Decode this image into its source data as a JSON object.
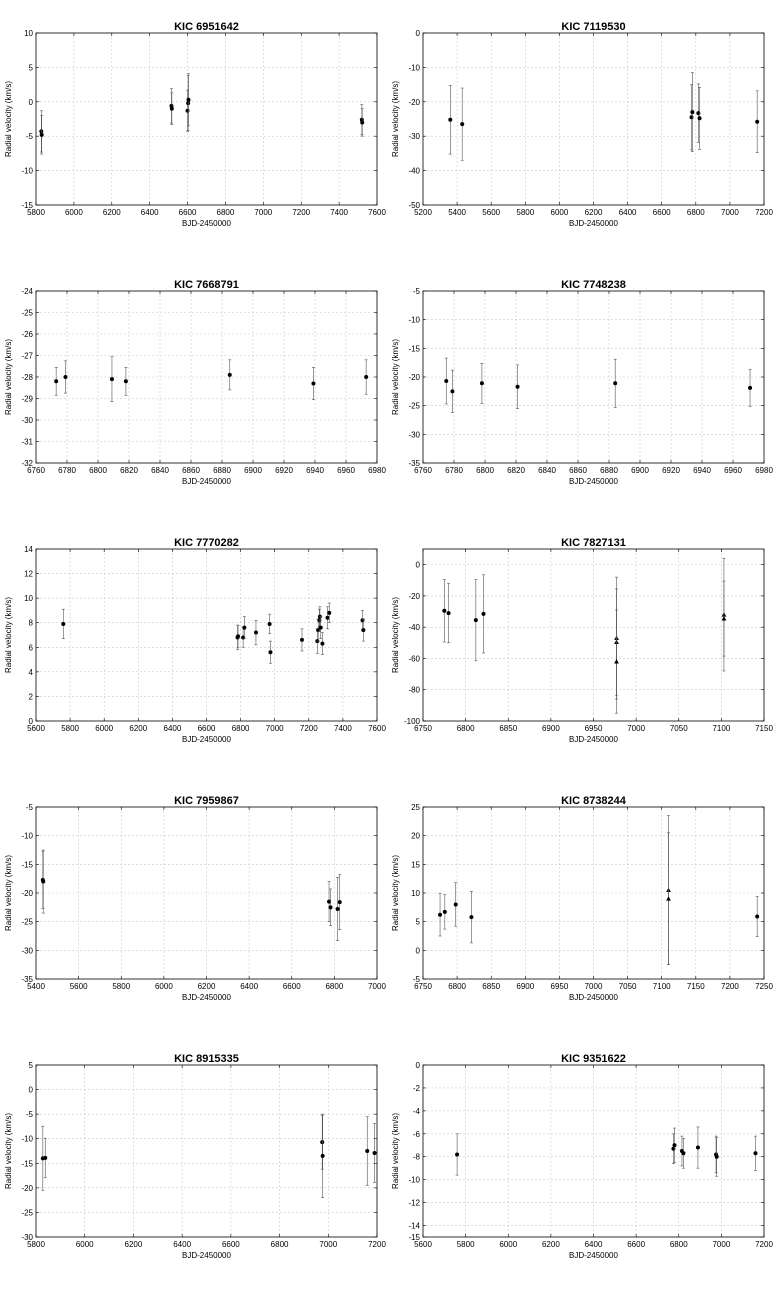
{
  "chart_data": [
    {
      "type": "scatter",
      "title": "KIC 6951642",
      "xlabel": "BJD-2450000",
      "ylabel": "Radial velocity (km/s)",
      "xlim": [
        5800,
        7600
      ],
      "ylim": [
        -15,
        10
      ],
      "xticks": [
        5800,
        6000,
        6200,
        6400,
        6600,
        6800,
        7000,
        7200,
        7400,
        7600
      ],
      "yticks": [
        -15,
        -10,
        -5,
        0,
        5,
        10
      ],
      "grid": true,
      "points": [
        {
          "x": 5828,
          "y": -4.3,
          "err": 3.0,
          "marker": "circle"
        },
        {
          "x": 5830,
          "y": -4.8,
          "err": 2.8,
          "marker": "circle"
        },
        {
          "x": 6515,
          "y": -0.6,
          "err": 2.5,
          "marker": "circle"
        },
        {
          "x": 6517,
          "y": -1.0,
          "err": 2.3,
          "marker": "circle"
        },
        {
          "x": 6600,
          "y": -1.3,
          "err": 3.0,
          "marker": "circle"
        },
        {
          "x": 6603,
          "y": -0.2,
          "err": 4.0,
          "marker": "circle"
        },
        {
          "x": 6605,
          "y": 0.3,
          "err": 3.8,
          "marker": "circle"
        },
        {
          "x": 7520,
          "y": -2.6,
          "err": 2.2,
          "marker": "circle"
        },
        {
          "x": 7522,
          "y": -3.0,
          "err": 2.0,
          "marker": "circle"
        }
      ]
    },
    {
      "type": "scatter",
      "title": "KIC 7119530",
      "xlabel": "BJD-2450000",
      "ylabel": "Radial velocity (km/s)",
      "xlim": [
        5200,
        7200
      ],
      "ylim": [
        -50,
        0
      ],
      "xticks": [
        5200,
        5400,
        5600,
        5800,
        6000,
        6200,
        6400,
        6600,
        6800,
        7000,
        7200
      ],
      "yticks": [
        -50,
        -40,
        -30,
        -20,
        -10,
        0
      ],
      "grid": true,
      "points": [
        {
          "x": 5360,
          "y": -25.2,
          "err": 10.0,
          "marker": "circle"
        },
        {
          "x": 5430,
          "y": -26.5,
          "err": 10.5,
          "marker": "circle"
        },
        {
          "x": 6775,
          "y": -24.5,
          "err": 9.5,
          "marker": "circle"
        },
        {
          "x": 6780,
          "y": -23.0,
          "err": 11.5,
          "marker": "circle"
        },
        {
          "x": 6815,
          "y": -23.3,
          "err": 8.5,
          "marker": "circle"
        },
        {
          "x": 6822,
          "y": -24.8,
          "err": 9.0,
          "marker": "circle"
        },
        {
          "x": 7160,
          "y": -25.8,
          "err": 9.0,
          "marker": "circle"
        }
      ]
    },
    {
      "type": "scatter",
      "title": "KIC 7668791",
      "xlabel": "BJD-2450000",
      "ylabel": "Radial velocity (km/s)",
      "xlim": [
        6760,
        6980
      ],
      "ylim": [
        -32,
        -24
      ],
      "xticks": [
        6760,
        6780,
        6800,
        6820,
        6840,
        6860,
        6880,
        6900,
        6920,
        6940,
        6960,
        6980
      ],
      "yticks": [
        -32,
        -31,
        -30,
        -29,
        -28,
        -27,
        -26,
        -25,
        -24
      ],
      "grid": true,
      "points": [
        {
          "x": 6773,
          "y": -28.2,
          "err": 0.65,
          "marker": "circle"
        },
        {
          "x": 6779,
          "y": -28.0,
          "err": 0.75,
          "marker": "circle"
        },
        {
          "x": 6809,
          "y": -28.1,
          "err": 1.05,
          "marker": "circle"
        },
        {
          "x": 6818,
          "y": -28.2,
          "err": 0.65,
          "marker": "circle"
        },
        {
          "x": 6885,
          "y": -27.9,
          "err": 0.7,
          "marker": "circle"
        },
        {
          "x": 6939,
          "y": -28.3,
          "err": 0.75,
          "marker": "circle"
        },
        {
          "x": 6973,
          "y": -28.0,
          "err": 0.8,
          "marker": "circle"
        }
      ]
    },
    {
      "type": "scatter",
      "title": "KIC 7748238",
      "xlabel": "BJD-2450000",
      "ylabel": "Radial velocity (km/s)",
      "xlim": [
        6760,
        6980
      ],
      "ylim": [
        -35,
        -5
      ],
      "xticks": [
        6760,
        6780,
        6800,
        6820,
        6840,
        6860,
        6880,
        6900,
        6920,
        6940,
        6960,
        6980
      ],
      "yticks": [
        -35,
        -30,
        -25,
        -20,
        -15,
        -10,
        -5
      ],
      "grid": true,
      "points": [
        {
          "x": 6775,
          "y": -20.7,
          "err": 4.0,
          "marker": "circle"
        },
        {
          "x": 6779,
          "y": -22.5,
          "err": 3.7,
          "marker": "circle"
        },
        {
          "x": 6798,
          "y": -21.1,
          "err": 3.5,
          "marker": "circle"
        },
        {
          "x": 6821,
          "y": -21.7,
          "err": 3.8,
          "marker": "circle"
        },
        {
          "x": 6884,
          "y": -21.1,
          "err": 4.2,
          "marker": "circle"
        },
        {
          "x": 6971,
          "y": -21.9,
          "err": 3.2,
          "marker": "circle"
        }
      ]
    },
    {
      "type": "scatter",
      "title": "KIC 7770282",
      "xlabel": "BJD-2450000",
      "ylabel": "Radial velocity (km/s)",
      "xlim": [
        5600,
        7600
      ],
      "ylim": [
        0,
        14
      ],
      "xticks": [
        5600,
        5800,
        6000,
        6200,
        6400,
        6600,
        6800,
        7000,
        7200,
        7400,
        7600
      ],
      "yticks": [
        0,
        2,
        4,
        6,
        8,
        10,
        12,
        14
      ],
      "grid": true,
      "points": [
        {
          "x": 5760,
          "y": 7.9,
          "err": 1.2,
          "marker": "circle"
        },
        {
          "x": 6782,
          "y": 6.8,
          "err": 1.0,
          "marker": "circle"
        },
        {
          "x": 6785,
          "y": 6.9,
          "err": 0.9,
          "marker": "circle"
        },
        {
          "x": 6815,
          "y": 6.8,
          "err": 0.8,
          "marker": "circle"
        },
        {
          "x": 6822,
          "y": 7.6,
          "err": 0.9,
          "marker": "circle"
        },
        {
          "x": 6890,
          "y": 7.2,
          "err": 1.0,
          "marker": "circle"
        },
        {
          "x": 6970,
          "y": 7.9,
          "err": 0.8,
          "marker": "circle"
        },
        {
          "x": 6975,
          "y": 5.6,
          "err": 0.9,
          "marker": "circle"
        },
        {
          "x": 7160,
          "y": 6.6,
          "err": 0.9,
          "marker": "circle"
        },
        {
          "x": 7250,
          "y": 6.5,
          "err": 1.0,
          "marker": "circle"
        },
        {
          "x": 7255,
          "y": 7.4,
          "err": 0.9,
          "marker": "circle"
        },
        {
          "x": 7262,
          "y": 8.2,
          "err": 0.9,
          "marker": "circle"
        },
        {
          "x": 7265,
          "y": 8.5,
          "err": 0.8,
          "marker": "circle"
        },
        {
          "x": 7270,
          "y": 7.6,
          "err": 0.9,
          "marker": "circle"
        },
        {
          "x": 7280,
          "y": 6.3,
          "err": 0.9,
          "marker": "circle"
        },
        {
          "x": 7310,
          "y": 8.4,
          "err": 0.9,
          "marker": "circle"
        },
        {
          "x": 7320,
          "y": 8.8,
          "err": 0.8,
          "marker": "circle"
        },
        {
          "x": 7515,
          "y": 8.2,
          "err": 0.8,
          "marker": "circle"
        },
        {
          "x": 7520,
          "y": 7.4,
          "err": 0.9,
          "marker": "circle"
        }
      ]
    },
    {
      "type": "scatter",
      "title": "KIC 7827131",
      "xlabel": "BJD-2450000",
      "ylabel": "Radial velocity (km/s)",
      "xlim": [
        6750,
        7150
      ],
      "ylim": [
        -100,
        10
      ],
      "xticks": [
        6750,
        6800,
        6850,
        6900,
        6950,
        7000,
        7050,
        7100,
        7150
      ],
      "yticks": [
        -100,
        -80,
        -60,
        -40,
        -20,
        0
      ],
      "grid": true,
      "points": [
        {
          "x": 6775,
          "y": -29.5,
          "err": 20.0,
          "marker": "circle"
        },
        {
          "x": 6780,
          "y": -31.0,
          "err": 19.0,
          "marker": "circle"
        },
        {
          "x": 6812,
          "y": -35.5,
          "err": 26.0,
          "marker": "circle"
        },
        {
          "x": 6821,
          "y": -31.5,
          "err": 25.0,
          "marker": "circle"
        },
        {
          "x": 6977,
          "y": -47.0,
          "err": 39.0,
          "marker": "triangle"
        },
        {
          "x": 6977,
          "y": -49.5,
          "err": 34.0,
          "marker": "triangle"
        },
        {
          "x": 6977,
          "y": -62.0,
          "err": 33.0,
          "marker": "triangle"
        },
        {
          "x": 7103,
          "y": -32.0,
          "err": 36.0,
          "marker": "triangle"
        },
        {
          "x": 7103,
          "y": -34.5,
          "err": 24.0,
          "marker": "triangle"
        }
      ]
    },
    {
      "type": "scatter",
      "title": "KIC 7959867",
      "xlabel": "BJD-2450000",
      "ylabel": "Radial velocity (km/s)",
      "xlim": [
        5400,
        7000
      ],
      "ylim": [
        -35,
        -5
      ],
      "xticks": [
        5400,
        5600,
        5800,
        6000,
        6200,
        6400,
        6600,
        6800,
        7000
      ],
      "yticks": [
        -35,
        -30,
        -25,
        -20,
        -15,
        -10,
        -5
      ],
      "grid": true,
      "points": [
        {
          "x": 5432,
          "y": -17.7,
          "err": 5.0,
          "marker": "circle"
        },
        {
          "x": 5434,
          "y": -18.0,
          "err": 5.5,
          "marker": "circle"
        },
        {
          "x": 6775,
          "y": -21.5,
          "err": 3.5,
          "marker": "circle"
        },
        {
          "x": 6782,
          "y": -22.5,
          "err": 3.2,
          "marker": "circle"
        },
        {
          "x": 6815,
          "y": -22.8,
          "err": 5.5,
          "marker": "circle"
        },
        {
          "x": 6825,
          "y": -21.6,
          "err": 4.8,
          "marker": "circle"
        }
      ]
    },
    {
      "type": "scatter",
      "title": "KIC 8738244",
      "xlabel": "BJD-2450000",
      "ylabel": "Radial velocity (km/s)",
      "xlim": [
        6750,
        7250
      ],
      "ylim": [
        -5,
        25
      ],
      "xticks": [
        6750,
        6800,
        6850,
        6900,
        6950,
        7000,
        7050,
        7100,
        7150,
        7200,
        7250
      ],
      "yticks": [
        -5,
        0,
        5,
        10,
        15,
        20,
        25
      ],
      "grid": true,
      "points": [
        {
          "x": 6775,
          "y": 6.2,
          "err": 3.7,
          "marker": "circle"
        },
        {
          "x": 6782,
          "y": 6.7,
          "err": 3.0,
          "marker": "circle"
        },
        {
          "x": 6798,
          "y": 8.0,
          "err": 3.8,
          "marker": "circle"
        },
        {
          "x": 6821,
          "y": 5.8,
          "err": 4.5,
          "marker": "circle"
        },
        {
          "x": 7110,
          "y": 10.5,
          "err": 13.0,
          "marker": "triangle"
        },
        {
          "x": 7110,
          "y": 9.0,
          "err": 11.5,
          "marker": "triangle"
        },
        {
          "x": 7240,
          "y": 5.9,
          "err": 3.5,
          "marker": "circle"
        }
      ]
    },
    {
      "type": "scatter",
      "title": "KIC 8915335",
      "xlabel": "BJD-2450000",
      "ylabel": "Radial velocity (km/s)",
      "xlim": [
        5800,
        7200
      ],
      "ylim": [
        -30,
        5
      ],
      "xticks": [
        5800,
        6000,
        6200,
        6400,
        6600,
        6800,
        7000,
        7200
      ],
      "yticks": [
        -30,
        -25,
        -20,
        -15,
        -10,
        -5,
        0,
        5
      ],
      "grid": true,
      "points": [
        {
          "x": 5828,
          "y": -14.0,
          "err": 6.5,
          "marker": "circle"
        },
        {
          "x": 5838,
          "y": -13.9,
          "err": 4.0,
          "marker": "circle"
        },
        {
          "x": 6975,
          "y": -10.7,
          "err": 5.5,
          "marker": "circle"
        },
        {
          "x": 6977,
          "y": -13.5,
          "err": 8.5,
          "marker": "circle"
        },
        {
          "x": 7160,
          "y": -12.5,
          "err": 7.0,
          "marker": "circle"
        },
        {
          "x": 7190,
          "y": -12.9,
          "err": 6.0,
          "marker": "circle"
        }
      ]
    },
    {
      "type": "scatter",
      "title": "KIC 9351622",
      "xlabel": "BJD-2450000",
      "ylabel": "Radial velocity (km/s)",
      "xlim": [
        5600,
        7200
      ],
      "ylim": [
        -15,
        0
      ],
      "xticks": [
        5600,
        5800,
        6000,
        6200,
        6400,
        6600,
        6800,
        7000,
        7200
      ],
      "yticks": [
        -15,
        -14,
        -12,
        -10,
        -8,
        -6,
        -4,
        -2,
        0
      ],
      "grid": true,
      "points": [
        {
          "x": 5760,
          "y": -7.8,
          "err": 1.8,
          "marker": "circle"
        },
        {
          "x": 6775,
          "y": -7.3,
          "err": 1.3,
          "marker": "circle"
        },
        {
          "x": 6780,
          "y": -7.0,
          "err": 1.5,
          "marker": "circle"
        },
        {
          "x": 6815,
          "y": -7.5,
          "err": 1.3,
          "marker": "circle"
        },
        {
          "x": 6822,
          "y": -7.7,
          "err": 1.3,
          "marker": "circle"
        },
        {
          "x": 6890,
          "y": -7.2,
          "err": 1.8,
          "marker": "circle"
        },
        {
          "x": 6975,
          "y": -7.8,
          "err": 1.6,
          "marker": "circle"
        },
        {
          "x": 6978,
          "y": -8.0,
          "err": 1.7,
          "marker": "circle"
        },
        {
          "x": 7160,
          "y": -7.7,
          "err": 1.5,
          "marker": "circle"
        }
      ]
    }
  ]
}
